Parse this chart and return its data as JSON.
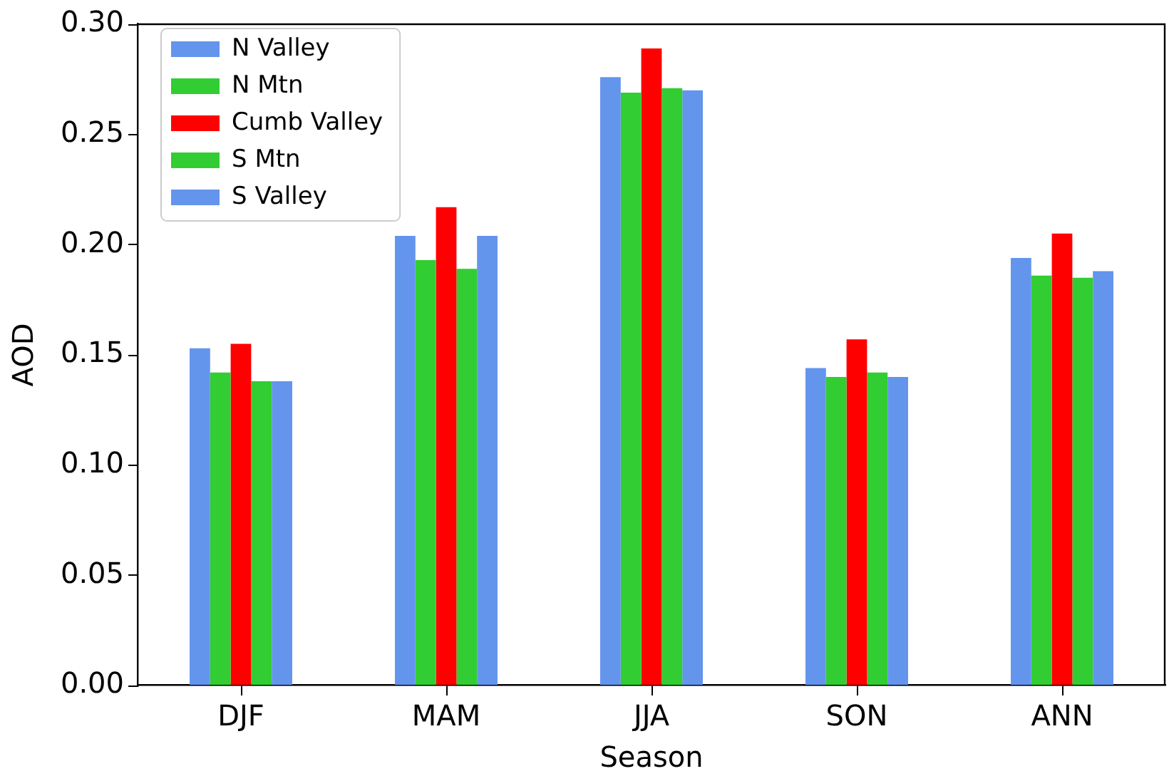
{
  "chart_data": {
    "type": "bar",
    "xlabel": "Season",
    "ylabel": "AOD",
    "categories": [
      "DJF",
      "MAM",
      "JJA",
      "SON",
      "ANN"
    ],
    "series": [
      {
        "name": "N Valley",
        "color": "#6495ed",
        "values": [
          0.153,
          0.204,
          0.276,
          0.144,
          0.194
        ]
      },
      {
        "name": "N Mtn",
        "color": "#32cd32",
        "values": [
          0.142,
          0.193,
          0.269,
          0.14,
          0.186
        ]
      },
      {
        "name": "Cumb Valley",
        "color": "#ff0000",
        "values": [
          0.155,
          0.217,
          0.289,
          0.157,
          0.205
        ]
      },
      {
        "name": "S Mtn",
        "color": "#32cd32",
        "values": [
          0.138,
          0.189,
          0.271,
          0.142,
          0.185
        ]
      },
      {
        "name": "S Valley",
        "color": "#6495ed",
        "values": [
          0.138,
          0.204,
          0.27,
          0.14,
          0.188
        ]
      }
    ],
    "ylim": [
      0,
      0.3
    ],
    "yticks": [
      {
        "value": 0,
        "label": "0.00"
      },
      {
        "value": 0.05,
        "label": "0.05"
      },
      {
        "value": 0.1,
        "label": "0.10"
      },
      {
        "value": 0.15,
        "label": "0.15"
      },
      {
        "value": 0.2,
        "label": "0.20"
      },
      {
        "value": 0.25,
        "label": "0.25"
      },
      {
        "value": 0.3,
        "label": "0.30"
      }
    ],
    "legend": "top left",
    "grid": false
  }
}
